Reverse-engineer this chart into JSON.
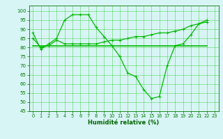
{
  "curve1_x": [
    0,
    1,
    2,
    3,
    4,
    5,
    6,
    7,
    8,
    9,
    10,
    11,
    12,
    13,
    14,
    15,
    16,
    17,
    18,
    19,
    20,
    21,
    22,
    23
  ],
  "curve1_y": [
    88,
    79,
    82,
    85,
    95,
    98,
    98,
    98,
    91,
    86,
    81,
    75,
    66,
    64,
    57,
    52,
    53,
    70,
    81,
    82,
    87,
    93,
    95,
    null
  ],
  "curve2_x": [
    0,
    1,
    2,
    3,
    4,
    5,
    6,
    7,
    8,
    9,
    10,
    11,
    12,
    13,
    14,
    15,
    16,
    17,
    18,
    19,
    20,
    21,
    22,
    23
  ],
  "curve2_y": [
    85,
    80,
    81,
    84,
    82,
    82,
    82,
    82,
    82,
    83,
    84,
    84,
    85,
    86,
    86,
    87,
    88,
    88,
    89,
    90,
    92,
    93,
    94,
    null
  ],
  "curve3_x": [
    0,
    1,
    2,
    3,
    4,
    5,
    6,
    7,
    8,
    9,
    10,
    11,
    12,
    13,
    14,
    15,
    16,
    17,
    18,
    19,
    20,
    21,
    22,
    23
  ],
  "curve3_y": [
    81,
    81,
    81,
    81,
    81,
    81,
    81,
    81,
    81,
    81,
    81,
    81,
    81,
    81,
    81,
    81,
    81,
    81,
    81,
    81,
    81,
    81,
    81,
    null
  ],
  "line_color": "#00bb00",
  "bg_color": "#d8f5f5",
  "grid_color": "#33cc33",
  "xlabel": "Humidité relative (%)",
  "ylim": [
    45,
    103
  ],
  "xlim": [
    -0.5,
    23.5
  ],
  "yticks": [
    45,
    50,
    55,
    60,
    65,
    70,
    75,
    80,
    85,
    90,
    95,
    100
  ],
  "xticks": [
    0,
    1,
    2,
    3,
    4,
    5,
    6,
    7,
    8,
    9,
    10,
    11,
    12,
    13,
    14,
    15,
    16,
    17,
    18,
    19,
    20,
    21,
    22,
    23
  ],
  "figsize": [
    3.2,
    2.0
  ],
  "dpi": 100
}
